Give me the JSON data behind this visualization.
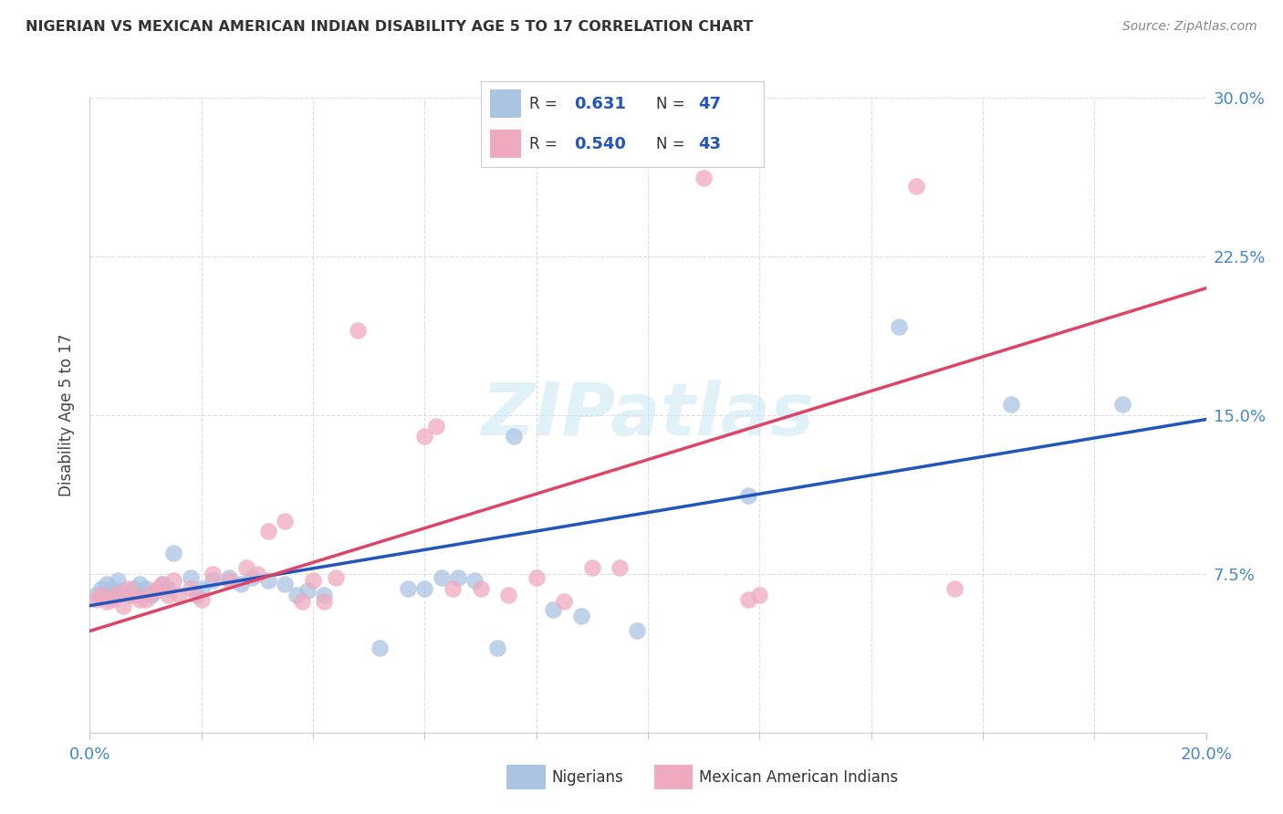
{
  "title": "NIGERIAN VS MEXICAN AMERICAN INDIAN DISABILITY AGE 5 TO 17 CORRELATION CHART",
  "source": "Source: ZipAtlas.com",
  "ylabel_label": "Disability Age 5 to 17",
  "xmin": 0.0,
  "xmax": 0.2,
  "ymin": 0.0,
  "ymax": 0.3,
  "legend1_r": "0.631",
  "legend1_n": "47",
  "legend2_r": "0.540",
  "legend2_n": "43",
  "legend1_label": "Nigerians",
  "legend2_label": "Mexican American Indians",
  "blue_color": "#aac4e2",
  "pink_color": "#f0aabf",
  "blue_line_color": "#2255bb",
  "pink_line_color": "#dd4466",
  "blue_scatter": [
    [
      0.001,
      0.065
    ],
    [
      0.002,
      0.068
    ],
    [
      0.002,
      0.065
    ],
    [
      0.003,
      0.07
    ],
    [
      0.003,
      0.066
    ],
    [
      0.004,
      0.068
    ],
    [
      0.004,
      0.065
    ],
    [
      0.005,
      0.072
    ],
    [
      0.005,
      0.065
    ],
    [
      0.006,
      0.067
    ],
    [
      0.006,
      0.066
    ],
    [
      0.007,
      0.065
    ],
    [
      0.008,
      0.068
    ],
    [
      0.009,
      0.07
    ],
    [
      0.01,
      0.068
    ],
    [
      0.011,
      0.065
    ],
    [
      0.012,
      0.067
    ],
    [
      0.013,
      0.07
    ],
    [
      0.014,
      0.068
    ],
    [
      0.015,
      0.085
    ],
    [
      0.018,
      0.073
    ],
    [
      0.019,
      0.065
    ],
    [
      0.02,
      0.068
    ],
    [
      0.022,
      0.072
    ],
    [
      0.025,
      0.073
    ],
    [
      0.027,
      0.07
    ],
    [
      0.029,
      0.073
    ],
    [
      0.032,
      0.072
    ],
    [
      0.035,
      0.07
    ],
    [
      0.037,
      0.065
    ],
    [
      0.039,
      0.067
    ],
    [
      0.042,
      0.065
    ],
    [
      0.052,
      0.04
    ],
    [
      0.057,
      0.068
    ],
    [
      0.06,
      0.068
    ],
    [
      0.063,
      0.073
    ],
    [
      0.066,
      0.073
    ],
    [
      0.069,
      0.072
    ],
    [
      0.073,
      0.04
    ],
    [
      0.076,
      0.14
    ],
    [
      0.083,
      0.058
    ],
    [
      0.088,
      0.055
    ],
    [
      0.098,
      0.048
    ],
    [
      0.118,
      0.112
    ],
    [
      0.145,
      0.192
    ],
    [
      0.165,
      0.155
    ],
    [
      0.185,
      0.155
    ]
  ],
  "pink_scatter": [
    [
      0.001,
      0.063
    ],
    [
      0.002,
      0.065
    ],
    [
      0.003,
      0.062
    ],
    [
      0.004,
      0.063
    ],
    [
      0.005,
      0.066
    ],
    [
      0.006,
      0.06
    ],
    [
      0.007,
      0.068
    ],
    [
      0.008,
      0.065
    ],
    [
      0.009,
      0.063
    ],
    [
      0.01,
      0.063
    ],
    [
      0.011,
      0.066
    ],
    [
      0.012,
      0.068
    ],
    [
      0.013,
      0.07
    ],
    [
      0.014,
      0.065
    ],
    [
      0.015,
      0.072
    ],
    [
      0.016,
      0.065
    ],
    [
      0.018,
      0.068
    ],
    [
      0.02,
      0.063
    ],
    [
      0.022,
      0.075
    ],
    [
      0.025,
      0.072
    ],
    [
      0.028,
      0.078
    ],
    [
      0.03,
      0.075
    ],
    [
      0.032,
      0.095
    ],
    [
      0.035,
      0.1
    ],
    [
      0.038,
      0.062
    ],
    [
      0.04,
      0.072
    ],
    [
      0.042,
      0.062
    ],
    [
      0.044,
      0.073
    ],
    [
      0.048,
      0.19
    ],
    [
      0.06,
      0.14
    ],
    [
      0.062,
      0.145
    ],
    [
      0.065,
      0.068
    ],
    [
      0.07,
      0.068
    ],
    [
      0.075,
      0.065
    ],
    [
      0.08,
      0.073
    ],
    [
      0.085,
      0.062
    ],
    [
      0.09,
      0.078
    ],
    [
      0.095,
      0.078
    ],
    [
      0.11,
      0.262
    ],
    [
      0.118,
      0.063
    ],
    [
      0.12,
      0.065
    ],
    [
      0.148,
      0.258
    ],
    [
      0.155,
      0.068
    ]
  ],
  "blue_line": [
    [
      0.0,
      0.06
    ],
    [
      0.2,
      0.148
    ]
  ],
  "pink_line": [
    [
      0.0,
      0.048
    ],
    [
      0.2,
      0.21
    ]
  ],
  "watermark": "ZIPatlas",
  "background_color": "#ffffff",
  "grid_color": "#dddddd",
  "ytick_vals": [
    0.075,
    0.15,
    0.225,
    0.3
  ],
  "ytick_labels": [
    "7.5%",
    "15.0%",
    "22.5%",
    "30.0%"
  ],
  "xtick_minor": [
    0.02,
    0.04,
    0.06,
    0.08,
    0.1,
    0.12,
    0.14,
    0.16,
    0.18
  ]
}
